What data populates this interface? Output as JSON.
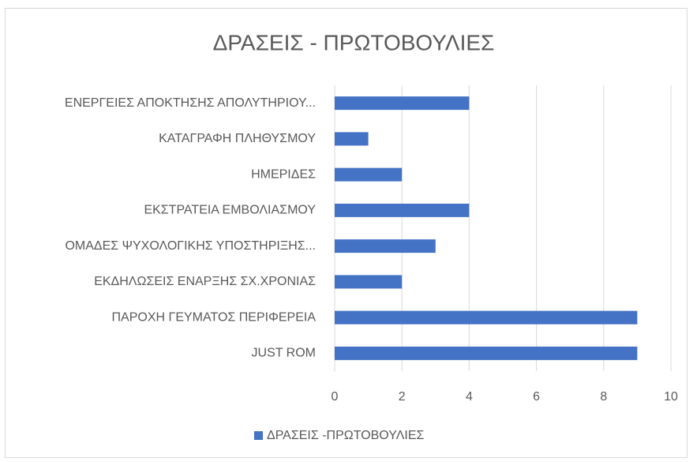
{
  "chart_data": {
    "type": "bar",
    "orientation": "horizontal",
    "title": "ΔΡΑΣΕΙΣ - ΠΡΩΤΟΒΟΥΛΙΕΣ",
    "categories": [
      "ΕΝΕΡΓΕΙΕΣ ΑΠΟΚΤΗΣΗΣ ΑΠΟΛΥΤΗΡΙΟΥ...",
      "ΚΑΤΑΓΡΑΦΗ ΠΛΗΘΥΣΜΟΥ",
      "ΗΜΕΡΙΔΕΣ",
      "ΕΚΣΤΡΑΤΕΙΑ ΕΜΒΟΛΙΑΣΜΟΥ",
      "ΟΜΑΔΕΣ ΨΥΧΟΛΟΓΙΚΗΣ ΥΠΟΣΤΗΡΙΞΗΣ...",
      "ΕΚΔΗΛΩΣΕΙΣ ΕΝΑΡΞΗΣ ΣΧ.ΧΡΟΝΙΑΣ",
      "ΠΑΡΟΧΗ ΓΕΥΜΑΤΟΣ ΠΕΡΙΦΕΡΕΙΑ",
      "JUST ROM"
    ],
    "series": [
      {
        "name": "ΔΡΑΣΕΙΣ -ΠΡΩΤΟΒΟΥΛΙΕΣ",
        "color": "#4472c4",
        "values": [
          4,
          1,
          2,
          4,
          3,
          2,
          9,
          9
        ]
      }
    ],
    "xlim": [
      0,
      10
    ],
    "xticks": [
      0,
      2,
      4,
      6,
      8,
      10
    ],
    "grid": true,
    "legend": "bottom"
  }
}
